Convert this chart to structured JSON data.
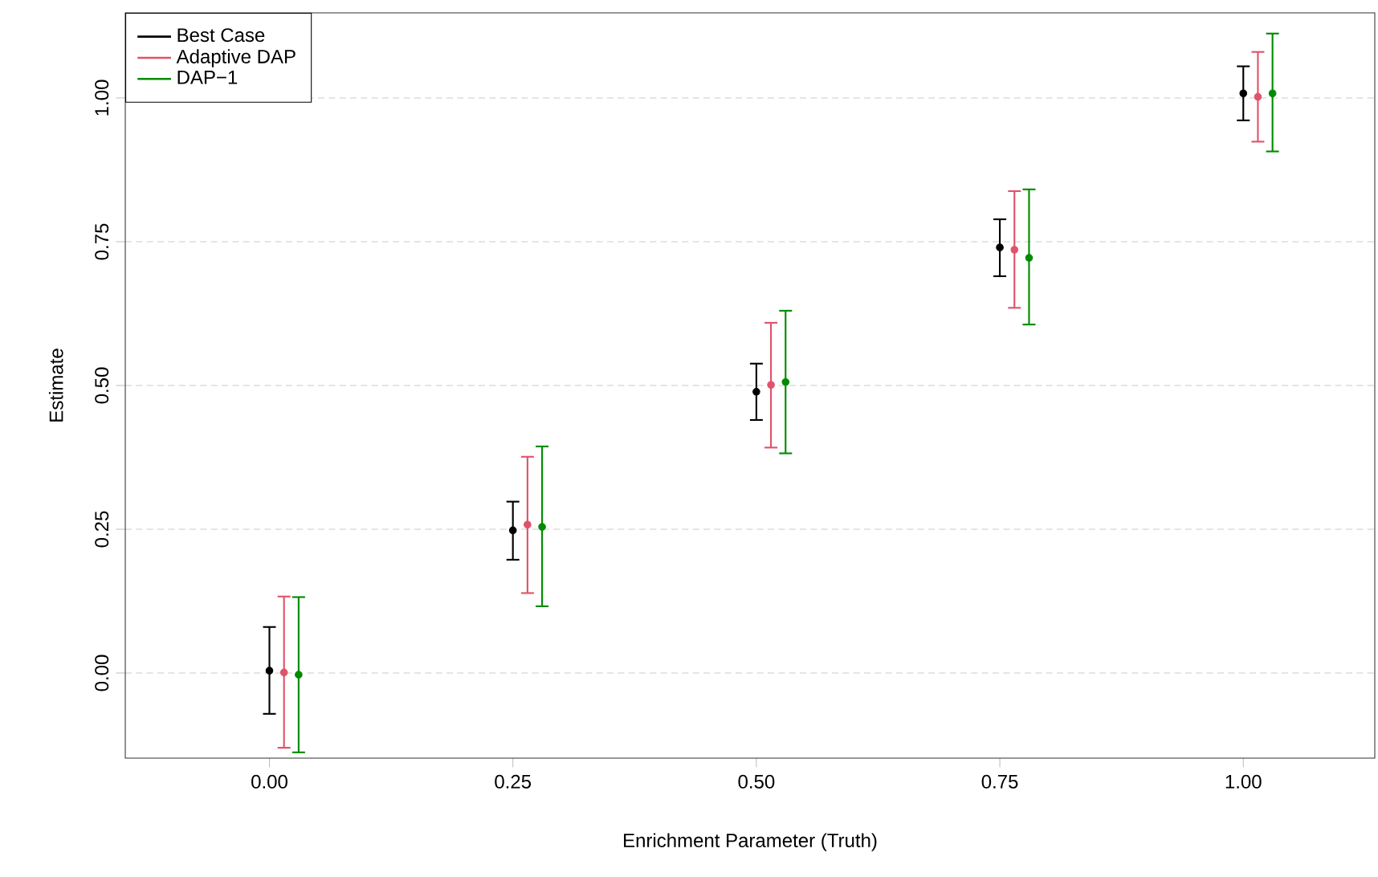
{
  "chart_data": {
    "type": "scatter",
    "xlabel": "Enrichment Parameter (Truth)",
    "ylabel": "Estimate",
    "xlim": [
      -0.148,
      1.135
    ],
    "ylim": [
      -0.148,
      1.148
    ],
    "xticks": [
      {
        "value": 0,
        "label": "0.00"
      },
      {
        "value": 0.25,
        "label": "0.25"
      },
      {
        "value": 0.5,
        "label": "0.50"
      },
      {
        "value": 0.75,
        "label": "0.75"
      },
      {
        "value": 1,
        "label": "1.00"
      }
    ],
    "yticks": [
      {
        "value": 0,
        "label": "0.00"
      },
      {
        "value": 0.25,
        "label": "0.25"
      },
      {
        "value": 0.5,
        "label": "0.50"
      },
      {
        "value": 0.75,
        "label": "0.75"
      },
      {
        "value": 1,
        "label": "1.00"
      }
    ],
    "grid": "y",
    "legend": "top left",
    "marker": "circle",
    "series": [
      {
        "name": "Best Case",
        "color": "#000000",
        "x": [
          0,
          0.25,
          0.5,
          0.75,
          1
        ],
        "values": [
          0.004,
          0.248,
          0.489,
          0.74,
          1.008
        ],
        "errors": [
          [
            -0.071,
            0.08
          ],
          [
            0.197,
            0.298
          ],
          [
            0.44,
            0.538
          ],
          [
            0.69,
            0.789
          ],
          [
            0.961,
            1.055
          ]
        ]
      },
      {
        "name": "Adaptive DAP",
        "color": "#df536b",
        "x": [
          0.015,
          0.265,
          0.515,
          0.765,
          1.015
        ],
        "values": [
          0.001,
          0.258,
          0.501,
          0.736,
          1.002
        ],
        "errors": [
          [
            -0.13,
            0.133
          ],
          [
            0.139,
            0.376
          ],
          [
            0.392,
            0.609
          ],
          [
            0.635,
            0.838
          ],
          [
            0.924,
            1.08
          ]
        ]
      },
      {
        "name": "DAP−1",
        "color": "#008b00",
        "x": [
          0.03,
          0.28,
          0.53,
          0.78,
          1.03
        ],
        "values": [
          -0.003,
          0.254,
          0.506,
          0.722,
          1.008
        ],
        "errors": [
          [
            -0.138,
            0.132
          ],
          [
            0.116,
            0.394
          ],
          [
            0.382,
            0.63
          ],
          [
            0.606,
            0.841
          ],
          [
            0.907,
            1.112
          ]
        ]
      }
    ]
  }
}
